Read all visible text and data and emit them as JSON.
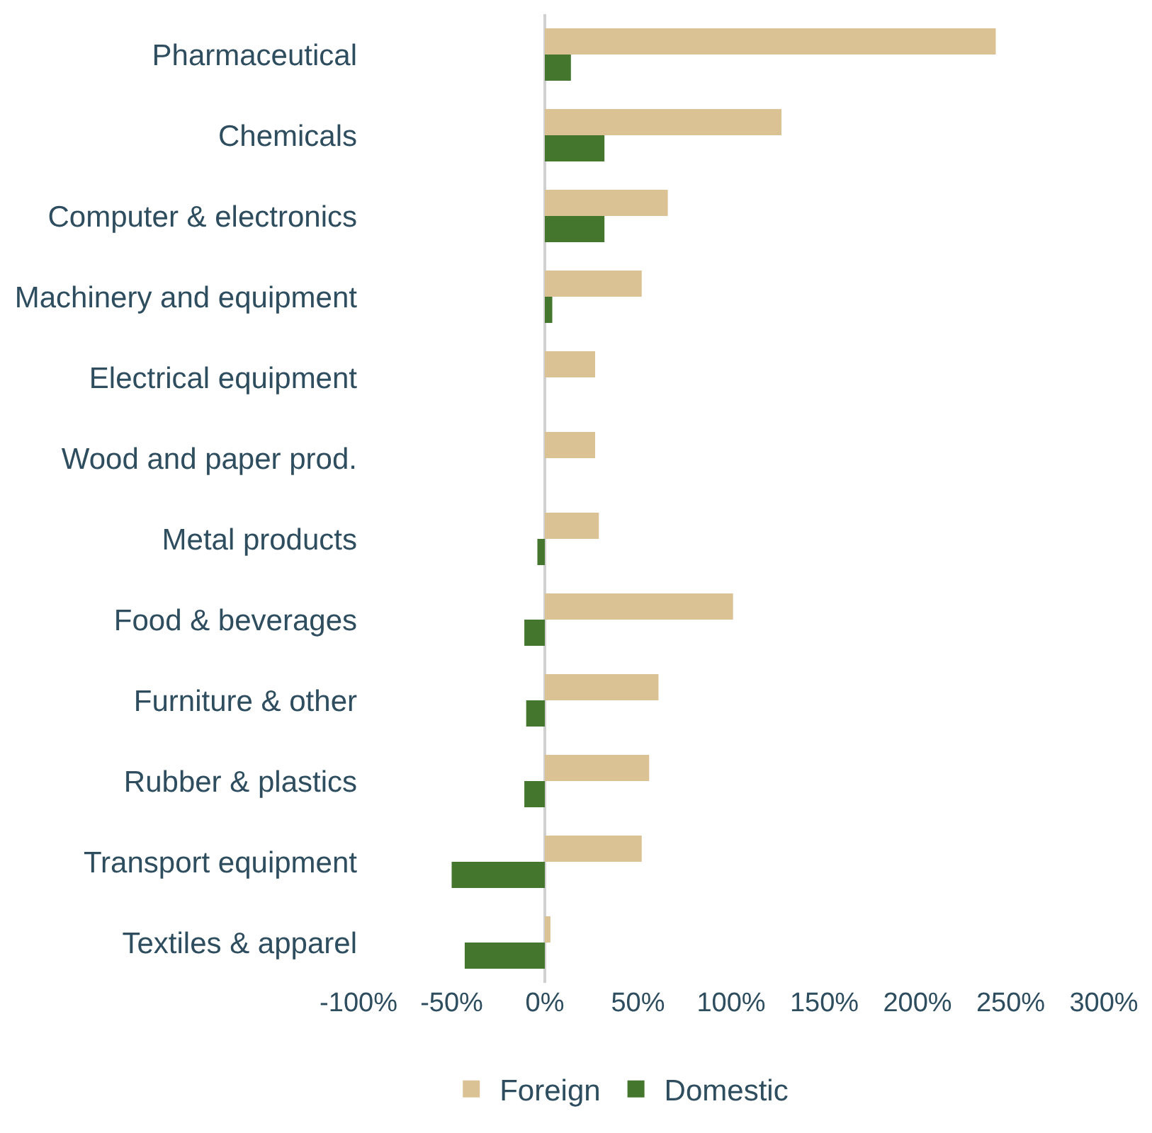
{
  "chart_data": {
    "type": "bar",
    "orientation": "horizontal",
    "categories": [
      "Pharmaceutical",
      "Chemicals",
      "Computer & electronics",
      "Machinery and equipment",
      "Electrical equipment",
      "Wood and paper prod.",
      "Metal products",
      "Food & beverages",
      "Furniture & other",
      "Rubber & plastics",
      "Transport equipment",
      "Textiles & apparel"
    ],
    "series": [
      {
        "name": "Foreign",
        "color": "#dbc294",
        "values": [
          242,
          127,
          66,
          52,
          27,
          27,
          29,
          101,
          61,
          56,
          52,
          3
        ]
      },
      {
        "name": "Domestic",
        "color": "#44762e",
        "values": [
          14,
          32,
          32,
          4,
          0,
          0,
          -4,
          -11,
          -10,
          -11,
          -50,
          -43
        ]
      }
    ],
    "xlim": [
      -100,
      300
    ],
    "xticks": [
      {
        "value": -100,
        "label": "-100%"
      },
      {
        "value": -50,
        "label": "-50%"
      },
      {
        "value": 0,
        "label": "0%"
      },
      {
        "value": 50,
        "label": "50%"
      },
      {
        "value": 100,
        "label": "100%"
      },
      {
        "value": 150,
        "label": "150%"
      },
      {
        "value": 200,
        "label": "200%"
      },
      {
        "value": 250,
        "label": "250%"
      },
      {
        "value": 300,
        "label": "300%"
      }
    ],
    "legend": "bottom"
  }
}
